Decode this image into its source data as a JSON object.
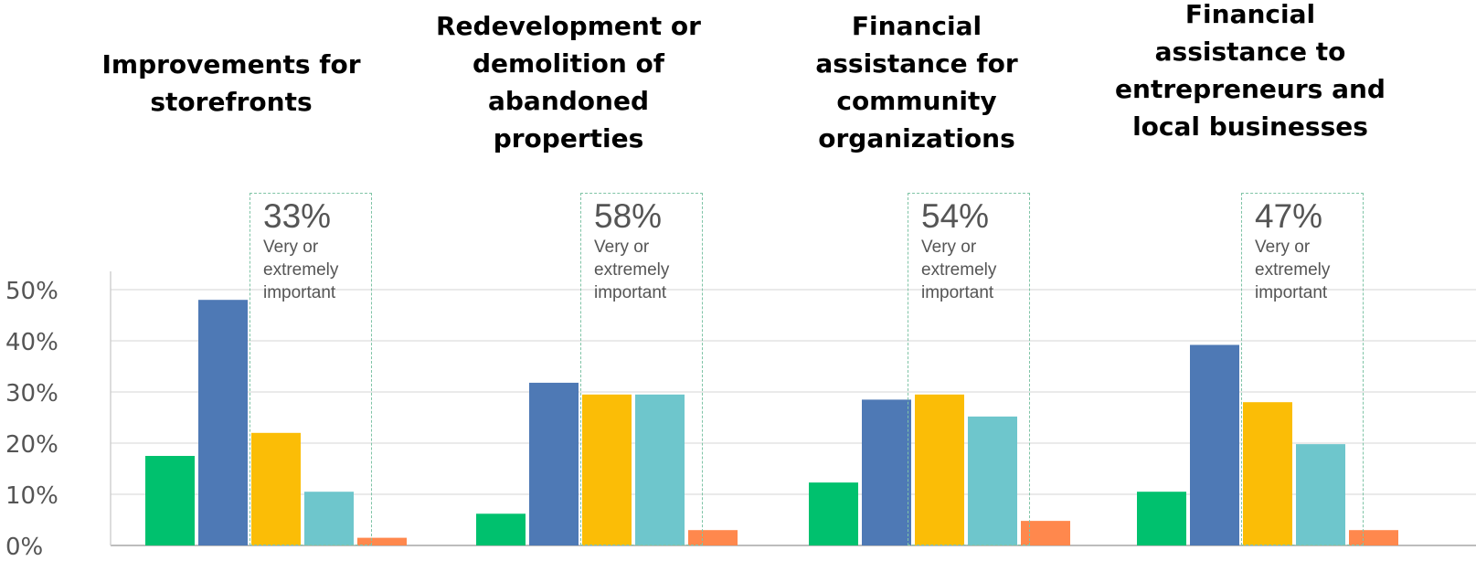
{
  "chart_data": {
    "type": "bar",
    "categories": [
      "Improvements for storefronts",
      "Redevelopment or demolition of abandoned properties",
      "Financial assistance for community organizations",
      "Financial assistance to entrepreneurs and local businesses"
    ],
    "series": [
      {
        "values": [
          17.5,
          6.2,
          12.3,
          10.5
        ],
        "color": "#00c16e"
      },
      {
        "values": [
          48,
          31.8,
          28.5,
          39.2
        ],
        "color": "#4e79b5"
      },
      {
        "values": [
          22,
          29.5,
          29.5,
          28
        ],
        "color": "#fbbd06"
      },
      {
        "values": [
          10.5,
          29.5,
          25.2,
          19.8
        ],
        "color": "#6ec6cc"
      },
      {
        "values": [
          1.5,
          3,
          4.8,
          3
        ],
        "color": "#ff884d"
      }
    ],
    "yticks": [
      "0%",
      "10%",
      "20%",
      "30%",
      "40%",
      "50%"
    ],
    "ylim": [
      0,
      50
    ],
    "grid": true,
    "callouts": [
      {
        "value": "33%",
        "label": "Very or extremely important"
      },
      {
        "value": "58%",
        "label": "Very or extremely important"
      },
      {
        "value": "54%",
        "label": "Very or extremely important"
      },
      {
        "value": "47%",
        "label": "Very or extremely important"
      }
    ]
  }
}
